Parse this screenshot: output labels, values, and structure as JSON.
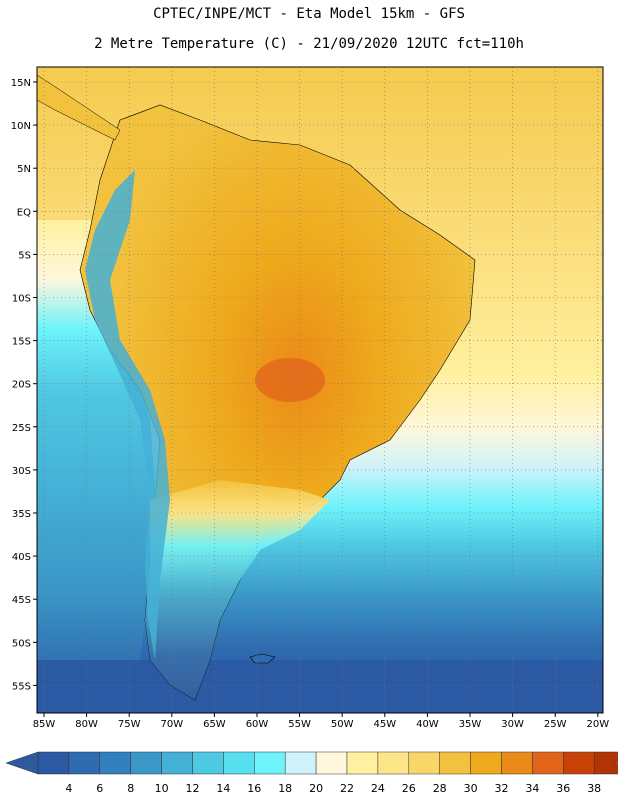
{
  "header": {
    "line1": "CPTEC/INPE/MCT -  Eta Model 15km - GFS",
    "line2": "2 Metre Temperature (C) - 21/09/2020 12UTC fct=110h"
  },
  "map": {
    "lat_labels": [
      "15N",
      "10N",
      "5N",
      "EQ",
      "5S",
      "10S",
      "15S",
      "20S",
      "25S",
      "30S",
      "35S",
      "40S",
      "45S",
      "50S",
      "55S"
    ],
    "lon_labels": [
      "85W",
      "80W",
      "75W",
      "70W",
      "65W",
      "60W",
      "55W",
      "50W",
      "45W",
      "40W",
      "35W",
      "30W",
      "25W",
      "20W"
    ]
  },
  "colorbar": {
    "labels": [
      "4",
      "6",
      "8",
      "10",
      "12",
      "14",
      "16",
      "18",
      "20",
      "22",
      "24",
      "26",
      "28",
      "30",
      "32",
      "34",
      "36",
      "38"
    ],
    "colors": [
      "#2b59a3",
      "#2e6bb0",
      "#3380be",
      "#3a97c8",
      "#44b0d6",
      "#4fc8e2",
      "#57dff0",
      "#6ef3fb",
      "#cef3fa",
      "#fff7dc",
      "#fff1a0",
      "#fde58a",
      "#f8d66a",
      "#f2c23e",
      "#eea91c",
      "#ea8a18",
      "#e2641a",
      "#c84208",
      "#b03404"
    ],
    "low_color": "#2c5a9c",
    "high_color": "#b33e10"
  }
}
